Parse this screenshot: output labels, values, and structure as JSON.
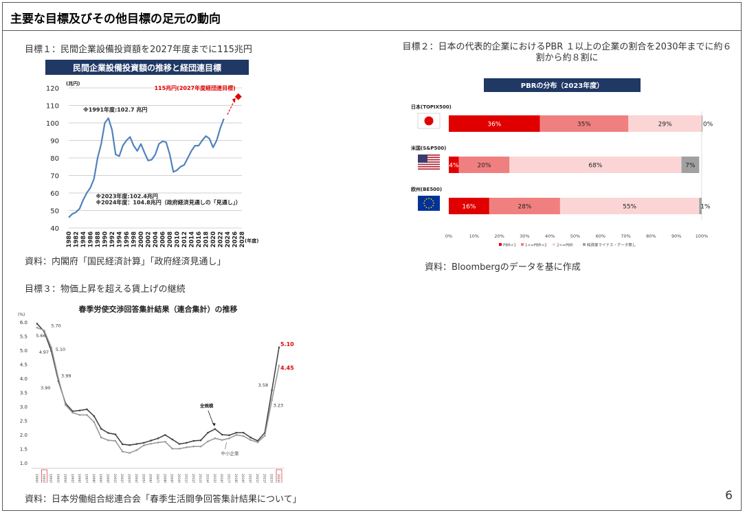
{
  "slide": {
    "title": "主要な目標及びその他目標の足元の動向",
    "page_number": "6"
  },
  "goal1": {
    "caption": "目標１：民間企業設備投資額を2027年度までに115兆円",
    "source": "資料：内閣府「国民経済計算」「政府経済見通し」"
  },
  "goal2": {
    "caption": "目標２：日本の代表的企業におけるPBR １以上の企業の割合を2030年までに約６割から約８割に",
    "source": "資料：Bloombergのデータを基に作成"
  },
  "goal3": {
    "caption": "目標３：物価上昇を超える賃上げの継続",
    "source": "資料：日本労働組合総連合会「春季生活闘争回答集計結果について」"
  },
  "chart_data": [
    {
      "id": "capex",
      "type": "line",
      "title": "民間企業設備投資額の推移と経団連目標",
      "ylabel": "(兆円)",
      "xlabel": "(年度)",
      "ylim": [
        40,
        120
      ],
      "yticks": [
        40,
        50,
        60,
        70,
        80,
        90,
        100,
        110,
        120
      ],
      "xlim": [
        1980,
        2028
      ],
      "xticks": [
        "1980",
        "1982",
        "1984",
        "1986",
        "1988",
        "1990",
        "1992",
        "1994",
        "1996",
        "1998",
        "2000",
        "2002",
        "2004",
        "2006",
        "2008",
        "2010",
        "2012",
        "2014",
        "2016",
        "2018",
        "2020",
        "2022",
        "2024",
        "2026",
        "2028"
      ],
      "grid": true,
      "series": [
        {
          "x": [
            1980,
            1981,
            1982,
            1983,
            1984,
            1985,
            1986,
            1987,
            1988,
            1989,
            1990,
            1991,
            1992,
            1993,
            1994,
            1995,
            1996,
            1997,
            1998,
            1999,
            2000,
            2001,
            2002,
            2003,
            2004,
            2005,
            2006,
            2007,
            2008,
            2009,
            2010,
            2011,
            2012,
            2013,
            2014,
            2015,
            2016,
            2017,
            2018,
            2019,
            2020,
            2021,
            2022,
            2023
          ],
          "values": [
            46,
            48,
            49,
            51,
            56,
            60,
            63,
            68,
            80,
            88,
            100,
            102.7,
            96,
            82,
            81,
            87,
            90,
            92,
            87,
            84,
            88,
            83,
            78.5,
            79,
            82,
            88,
            89.5,
            89,
            82,
            72,
            73,
            75,
            76,
            80,
            84,
            87,
            87,
            90,
            92.5,
            91,
            86,
            90,
            97,
            102.4
          ],
          "color": "#4f81bd"
        }
      ],
      "target": {
        "x": 2027,
        "y": 115,
        "label": "115兆円(2027年度経団連目標)",
        "color": "#e00000"
      },
      "target_arrow_from": {
        "x": 2024,
        "y": 104.8
      },
      "annotations": [
        {
          "text": "※1991年度:102.7 兆円",
          "x": 1984,
          "y": 106.5
        },
        {
          "text": "※2023年度:102.4兆円",
          "x": 1987.5,
          "y": 57
        },
        {
          "text": "※2024年度：104.8兆円（政府経済見通しの「見通し」）",
          "x": 1987.5,
          "y": 53.5
        }
      ]
    },
    {
      "id": "pbr",
      "type": "bar",
      "orientation": "horizontal-stacked-100",
      "title": "PBRの分布（2023年度）",
      "categories": [
        "日本(TOPIX500)",
        "米国(S&P500)",
        "欧州(BE500)"
      ],
      "flags": [
        "japan-flag-icon",
        "usa-flag-icon",
        "eu-flag-icon"
      ],
      "series": [
        {
          "name": "PBR<1",
          "values": [
            36,
            4,
            16
          ],
          "labels": [
            "36%",
            "4%",
            "16%"
          ],
          "color": "#e00000"
        },
        {
          "name": "1<=PBR<2",
          "values": [
            35,
            20,
            28
          ],
          "labels": [
            "35%",
            "20%",
            "28%"
          ],
          "color": "#f08080"
        },
        {
          "name": "2<=PBR",
          "values": [
            29,
            68,
            55
          ],
          "labels": [
            "29%",
            "68%",
            "55%"
          ],
          "color": "#fbd5d5"
        },
        {
          "name": "純資産マイナス・データ無し",
          "values": [
            0.3,
            7,
            1
          ],
          "labels": [
            "0%",
            "7%",
            "1%"
          ],
          "color": "#a0a0a0"
        }
      ],
      "xticks": [
        "0%",
        "10%",
        "20%",
        "30%",
        "40%",
        "50%",
        "60%",
        "70%",
        "80%",
        "90%",
        "100%"
      ],
      "legend": "bottom"
    },
    {
      "id": "wage",
      "type": "line",
      "title": "春季労使交渉回答集計結果（連合集計）の推移",
      "ylabel": "(%)",
      "ylim": [
        1.0,
        6.0
      ],
      "yticks": [
        "1.0",
        "1.5",
        "2.0",
        "2.5",
        "3.0",
        "3.5",
        "4.0",
        "4.5",
        "5.0",
        "5.5",
        "6.0"
      ],
      "x": [
        "1990年",
        "1991年",
        "1992年",
        "1993年",
        "1994年",
        "1995年",
        "1996年",
        "1997年",
        "1998年",
        "1999年",
        "2000年",
        "2001年",
        "2002年",
        "2003年",
        "2004年",
        "2005年",
        "2006年",
        "2007年",
        "2008年",
        "2009年",
        "2010年",
        "2011年",
        "2012年",
        "2013年",
        "2014年",
        "2015年",
        "2016年",
        "2017年",
        "2018年",
        "2019年",
        "2020年",
        "2021年",
        "2022年",
        "2023年",
        "2024年"
      ],
      "highlight_x": [
        "1991年",
        "2024年"
      ],
      "series": [
        {
          "name": "全規模",
          "values": [
            5.94,
            5.66,
            4.97,
            3.9,
            3.11,
            2.83,
            2.86,
            2.9,
            2.66,
            2.21,
            2.06,
            2.01,
            1.66,
            1.63,
            1.67,
            1.71,
            1.79,
            1.87,
            1.99,
            1.83,
            1.67,
            1.71,
            1.78,
            1.8,
            2.07,
            2.2,
            2.0,
            1.98,
            2.07,
            2.07,
            1.9,
            1.78,
            2.07,
            3.58,
            5.1
          ],
          "color": "#444444"
        },
        {
          "name": "中小企業",
          "values": [
            5.8,
            5.7,
            5.1,
            3.99,
            3.05,
            2.78,
            2.7,
            2.7,
            2.45,
            1.9,
            1.8,
            1.78,
            1.4,
            1.35,
            1.45,
            1.62,
            1.68,
            1.72,
            1.75,
            1.5,
            1.5,
            1.55,
            1.58,
            1.58,
            1.76,
            1.87,
            1.81,
            1.87,
            1.99,
            1.95,
            1.81,
            1.73,
            1.96,
            3.23,
            4.45
          ],
          "color": "#999999"
        }
      ],
      "data_labels": [
        {
          "text": "5.70",
          "series": 1,
          "i": 1
        },
        {
          "text": "5.66",
          "series": 0,
          "i": 1
        },
        {
          "text": "4.97",
          "series": 0,
          "i": 2
        },
        {
          "text": "5.10",
          "series": 1,
          "i": 2
        },
        {
          "text": "3.99",
          "series": 1,
          "i": 3
        },
        {
          "text": "3.90",
          "series": 0,
          "i": 3
        },
        {
          "text": "3.58",
          "series": 0,
          "i": 33
        },
        {
          "text": "3.23",
          "series": 1,
          "i": 33
        },
        {
          "text": "5.10",
          "series": 0,
          "i": 34,
          "color": "#e00000"
        },
        {
          "text": "4.45",
          "series": 1,
          "i": 34,
          "color": "#e00000"
        }
      ],
      "series_labels": [
        {
          "text": "全規模",
          "series": 0
        },
        {
          "text": "中小企業",
          "series": 1
        }
      ]
    }
  ]
}
